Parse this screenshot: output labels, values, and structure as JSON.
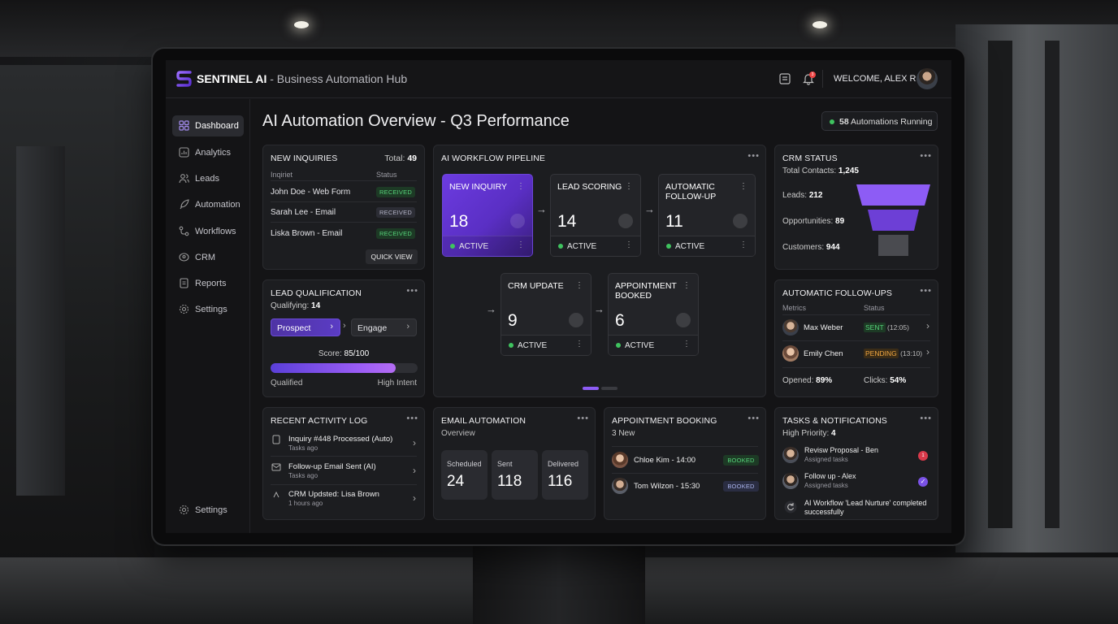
{
  "app": {
    "brand": "SENTINEL AI",
    "subtitle": " - Business Automation Hub",
    "welcome": "WELCOME, ALEX R.",
    "notif_count": "3"
  },
  "sidebar": {
    "items": [
      {
        "label": "Dashboard",
        "icon": "grid-icon"
      },
      {
        "label": "Analytics",
        "icon": "chart-icon"
      },
      {
        "label": "Leads",
        "icon": "users-icon"
      },
      {
        "label": "Automation",
        "icon": "rocket-icon"
      },
      {
        "label": "Workflows",
        "icon": "flow-icon"
      },
      {
        "label": "CRM",
        "icon": "crm-icon"
      },
      {
        "label": "Reports",
        "icon": "report-icon"
      },
      {
        "label": "Settings",
        "icon": "gear-icon"
      }
    ],
    "bottom_label": "Settings"
  },
  "page": {
    "title": "AI Automation Overview - Q3 Performance",
    "running_count": "58",
    "running_text": " Automations Running"
  },
  "inquiries": {
    "title": "NEW INQUIRIES",
    "total_label": "Total: ",
    "total": "49",
    "col1": "Inqiriet",
    "col2": "Status",
    "rows": [
      {
        "name": "John Doe - Web Form",
        "status": "RECEIVED"
      },
      {
        "name": "Sarah Lee - Email",
        "status": "RECEIVED"
      },
      {
        "name": "Liska Brown - Email",
        "status": "RECEIVED"
      }
    ],
    "button": "QUICK VIEW"
  },
  "pipeline": {
    "title": "AI WORKFLOW PIPELINE",
    "nodes": [
      {
        "name": "NEW INQUIRY",
        "value": "18",
        "status": "ACTIVE"
      },
      {
        "name": "LEAD SCORING",
        "value": "14",
        "status": "ACTIVE"
      },
      {
        "name": "AUTOMATIC\nFOLLOW-UP",
        "value": "11",
        "status": "ACTIVE"
      },
      {
        "name": "CRM UPDATE",
        "value": "9",
        "status": "ACTIVE"
      },
      {
        "name": "APPOINTMENT\nBOOKED",
        "value": "6",
        "status": "ACTIVE"
      }
    ]
  },
  "crm": {
    "title": "CRM STATUS",
    "total_label": "Total Contacts: ",
    "total": "1,245",
    "rows": [
      {
        "label": "Leads: ",
        "value": "212"
      },
      {
        "label": "Opportunities: ",
        "value": "89"
      },
      {
        "label": "Customers: ",
        "value": "944"
      }
    ],
    "funnel_colors": [
      "#8d5cf5",
      "#6d3fd6",
      "#4a4b50"
    ]
  },
  "qualification": {
    "title": "LEAD QUALIFICATION",
    "qual_label": "Qualifying: ",
    "qual_value": "14",
    "stage1": "Prospect",
    "stage2": "Engage",
    "score_label": "Score: ",
    "score": "85/100",
    "score_fraction": 0.85,
    "left": "Qualified",
    "right": "High Intent"
  },
  "followups": {
    "title": "AUTOMATIC FOLLOW-UPS",
    "col1": "Metrics",
    "col2": "Status",
    "rows": [
      {
        "name": "Max Weber",
        "status": "SENT",
        "time": " (12:05)"
      },
      {
        "name": "Emily Chen",
        "status": "PENDING",
        "time": " (13:10)"
      }
    ],
    "opened_label": "Opened: ",
    "opened": "89%",
    "clicks_label": "Clicks: ",
    "clicks": "54%"
  },
  "activity": {
    "title": "RECENT ACTIVITY LOG",
    "rows": [
      {
        "text": "Inquiry #448 Processed (Auto)",
        "time": "Tasks ago",
        "icon": "doc-icon"
      },
      {
        "text": "Follow-up Email Sent (AI)",
        "time": "Tasks ago",
        "icon": "mail-icon"
      },
      {
        "text": "CRM Updsted: Lisa Brown",
        "time": "1 hours ago",
        "icon": "crm-icon"
      }
    ]
  },
  "email": {
    "title": "EMAIL AUTOMATION",
    "subtitle": "Overview",
    "stats": [
      {
        "label": "Scheduled",
        "value": "24"
      },
      {
        "label": "Sent",
        "value": "118"
      },
      {
        "label": "Delivered",
        "value": "116"
      }
    ]
  },
  "booking": {
    "title": "APPOINTMENT BOOKING",
    "subtitle": "3 New",
    "rows": [
      {
        "name": "Chloe Kim - 14:00",
        "status": "BOOKED"
      },
      {
        "name": "Tom Wilzon - 15:30",
        "status": "BOOKED"
      }
    ]
  },
  "tasks": {
    "title": "TASKS & NOTIFICATIONS",
    "prio_label": "High Priority: ",
    "prio": "4",
    "rows": [
      {
        "text": "Revisw Proposal - Ben",
        "sub": "Assigned tasks"
      },
      {
        "text": "Follow up - Alex",
        "sub": "Assigned tasks"
      }
    ],
    "notice1": "AI Workflow 'Lead Nurture' completed",
    "notice2": "successfully",
    "badge": "1"
  }
}
